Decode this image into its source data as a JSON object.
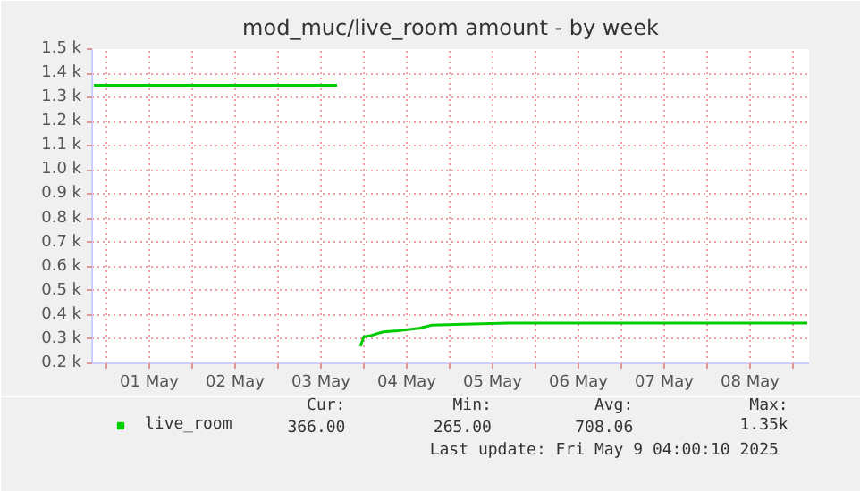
{
  "chart_data": {
    "type": "line",
    "title": "mod_muc/live_room amount - by week",
    "x": [
      "2025-04-30T20:30",
      "2025-05-03T16:30",
      "2025-05-03T18:00",
      "2025-05-03T23:00",
      "2025-05-04T00:00",
      "2025-05-04T02:00",
      "2025-05-04T03:30",
      "2025-05-04T05:30",
      "2025-05-04T09:30",
      "2025-05-04T15:30",
      "2025-05-04T19:00",
      "2025-05-05T16:30",
      "2025-05-09T04:00"
    ],
    "series": [
      {
        "name": "live_room",
        "color": "#00cc00",
        "values": [
          1350,
          1350,
          null,
          270,
          310,
          315,
          322,
          330,
          335,
          345,
          358,
          366,
          366
        ]
      }
    ],
    "xlim": [
      "2025-04-30T20:00",
      "2025-05-09T04:30"
    ],
    "xticks": [
      {
        "value": "2025-05-01T00:00",
        "label": null
      },
      {
        "value": "2025-05-01T12:00",
        "label": "01 May"
      },
      {
        "value": "2025-05-02T00:00",
        "label": null
      },
      {
        "value": "2025-05-02T12:00",
        "label": "02 May"
      },
      {
        "value": "2025-05-03T00:00",
        "label": null
      },
      {
        "value": "2025-05-03T12:00",
        "label": "03 May"
      },
      {
        "value": "2025-05-04T00:00",
        "label": null
      },
      {
        "value": "2025-05-04T12:00",
        "label": "04 May"
      },
      {
        "value": "2025-05-05T00:00",
        "label": null
      },
      {
        "value": "2025-05-05T12:00",
        "label": "05 May"
      },
      {
        "value": "2025-05-06T00:00",
        "label": null
      },
      {
        "value": "2025-05-06T12:00",
        "label": "06 May"
      },
      {
        "value": "2025-05-07T00:00",
        "label": null
      },
      {
        "value": "2025-05-07T12:00",
        "label": "07 May"
      },
      {
        "value": "2025-05-08T00:00",
        "label": null
      },
      {
        "value": "2025-05-08T12:00",
        "label": "08 May"
      },
      {
        "value": "2025-05-09T00:00",
        "label": null
      }
    ],
    "ylim": [
      200,
      1500
    ],
    "yticks": [
      {
        "value": 200,
        "label": "0.2 k"
      },
      {
        "value": 300,
        "label": "0.3 k"
      },
      {
        "value": 400,
        "label": "0.4 k"
      },
      {
        "value": 500,
        "label": "0.5 k"
      },
      {
        "value": 600,
        "label": "0.6 k"
      },
      {
        "value": 700,
        "label": "0.7 k"
      },
      {
        "value": 800,
        "label": "0.8 k"
      },
      {
        "value": 900,
        "label": "0.9 k"
      },
      {
        "value": 1000,
        "label": "1.0 k"
      },
      {
        "value": 1100,
        "label": "1.1 k"
      },
      {
        "value": 1200,
        "label": "1.2 k"
      },
      {
        "value": 1300,
        "label": "1.3 k"
      },
      {
        "value": 1400,
        "label": "1.4 k"
      },
      {
        "value": 1500,
        "label": "1.5 k"
      }
    ],
    "grid": true,
    "legend": "bottom",
    "annotations": [
      "Cur:",
      "Min:",
      "Avg:",
      "Max:",
      "366.00",
      "265.00",
      "708.06",
      "1.35k",
      "Last update: Fri May  9 04:00:10 2025"
    ]
  }
}
